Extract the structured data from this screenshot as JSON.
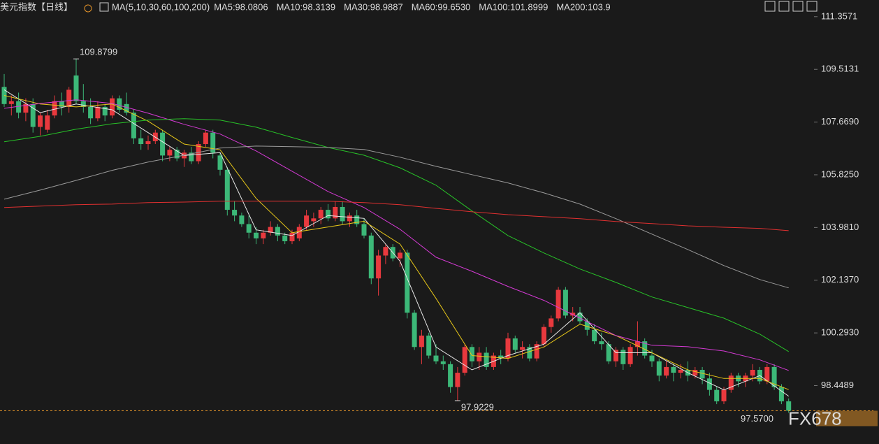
{
  "chart_data": {
    "type": "candlestick",
    "title": "美元指数",
    "period": "【日线】",
    "indicator": "MA(5,10,30,60,100,200)",
    "ylim": [
      97.0,
      111.94
    ],
    "yticks": [
      111.3571,
      109.5131,
      {
        "value": 107.669,
        "label": "107.6690"
      },
      {
        "value": 105.825,
        "label": "105.8250"
      },
      {
        "value": 103.981,
        "label": "103.9810"
      },
      {
        "value": 102.137,
        "label": "102.1370"
      },
      {
        "value": 100.293,
        "label": "100.2930"
      },
      98.4489
    ],
    "up_color": "#e8393e",
    "down_color": "#3cb878",
    "ohlc": [
      [
        108.9,
        109.35,
        108.2,
        108.3
      ],
      [
        108.3,
        108.6,
        107.9,
        108.4
      ],
      [
        108.4,
        108.7,
        107.8,
        108.0
      ],
      [
        108.0,
        108.5,
        107.7,
        108.3
      ],
      [
        108.3,
        108.5,
        107.3,
        107.5
      ],
      [
        107.5,
        108.0,
        107.2,
        107.9
      ],
      [
        107.4,
        108.1,
        107.3,
        107.9
      ],
      [
        107.9,
        108.6,
        107.8,
        108.4
      ],
      [
        108.4,
        108.7,
        107.9,
        108.2
      ],
      [
        108.2,
        108.9,
        108.0,
        108.8
      ],
      [
        109.3,
        109.88,
        108.3,
        108.4
      ],
      [
        108.4,
        109.0,
        108.0,
        108.2
      ],
      [
        108.2,
        108.5,
        107.6,
        107.8
      ],
      [
        107.8,
        108.4,
        107.7,
        108.2
      ],
      [
        108.2,
        108.3,
        107.7,
        107.9
      ],
      [
        107.9,
        108.6,
        107.8,
        108.5
      ],
      [
        108.5,
        108.6,
        108.0,
        108.1
      ],
      [
        108.3,
        108.7,
        107.9,
        108.0
      ],
      [
        108.0,
        108.1,
        106.9,
        107.1
      ],
      [
        107.1,
        107.4,
        106.7,
        106.9
      ],
      [
        106.9,
        107.2,
        106.7,
        107.0
      ],
      [
        107.0,
        107.4,
        106.9,
        107.3
      ],
      [
        107.3,
        107.4,
        106.3,
        106.5
      ],
      [
        106.5,
        106.8,
        106.3,
        106.7
      ],
      [
        106.7,
        106.8,
        106.3,
        106.4
      ],
      [
        106.4,
        106.7,
        106.1,
        106.6
      ],
      [
        106.6,
        106.8,
        106.2,
        106.3
      ],
      [
        106.3,
        107.0,
        106.2,
        106.9
      ],
      [
        106.9,
        107.4,
        106.8,
        107.3
      ],
      [
        107.3,
        107.4,
        106.4,
        106.6
      ],
      [
        106.5,
        106.6,
        105.8,
        106.0
      ],
      [
        106.0,
        106.1,
        104.4,
        104.6
      ],
      [
        104.6,
        104.9,
        104.2,
        104.4
      ],
      [
        104.4,
        104.5,
        104.0,
        104.1
      ],
      [
        104.1,
        104.4,
        103.6,
        103.8
      ],
      [
        103.8,
        104.0,
        103.4,
        103.6
      ],
      [
        103.6,
        103.9,
        103.4,
        103.8
      ],
      [
        103.8,
        104.2,
        103.7,
        104.0
      ],
      [
        104.0,
        104.1,
        103.5,
        103.7
      ],
      [
        103.7,
        103.8,
        103.4,
        103.5
      ],
      [
        103.5,
        103.9,
        103.4,
        103.8
      ],
      [
        103.6,
        104.1,
        103.5,
        104.0
      ],
      [
        104.0,
        104.6,
        103.9,
        104.4
      ],
      [
        104.2,
        104.5,
        104.0,
        104.3
      ],
      [
        104.3,
        104.7,
        104.1,
        104.6
      ],
      [
        104.6,
        104.8,
        104.2,
        104.3
      ],
      [
        104.3,
        104.9,
        104.2,
        104.7
      ],
      [
        104.7,
        104.9,
        104.1,
        104.2
      ],
      [
        104.2,
        104.5,
        104.0,
        104.4
      ],
      [
        104.4,
        104.6,
        104.0,
        104.1
      ],
      [
        104.1,
        104.3,
        103.6,
        103.7
      ],
      [
        103.7,
        103.8,
        102.0,
        102.2
      ],
      [
        102.2,
        103.2,
        101.6,
        103.0
      ],
      [
        103.0,
        103.4,
        102.7,
        103.3
      ],
      [
        103.3,
        103.4,
        102.8,
        102.9
      ],
      [
        102.9,
        103.2,
        102.6,
        103.1
      ],
      [
        103.1,
        103.2,
        100.8,
        101.0
      ],
      [
        101.0,
        101.1,
        99.7,
        99.8
      ],
      [
        99.8,
        100.4,
        99.2,
        100.2
      ],
      [
        100.2,
        100.3,
        99.4,
        99.5
      ],
      [
        99.5,
        99.9,
        99.2,
        99.3
      ],
      [
        99.3,
        99.5,
        99.0,
        99.2
      ],
      [
        99.2,
        99.3,
        98.2,
        98.4
      ],
      [
        98.4,
        99.1,
        97.92,
        98.9
      ],
      [
        98.9,
        99.9,
        98.8,
        99.8
      ],
      [
        99.8,
        99.9,
        99.1,
        99.3
      ],
      [
        99.3,
        99.8,
        99.0,
        99.6
      ],
      [
        99.6,
        99.8,
        99.0,
        99.1
      ],
      [
        99.1,
        99.6,
        99.0,
        99.5
      ],
      [
        99.5,
        99.7,
        99.2,
        99.4
      ],
      [
        99.4,
        100.3,
        99.3,
        100.1
      ],
      [
        100.1,
        100.2,
        99.6,
        99.7
      ],
      [
        99.7,
        100.0,
        99.4,
        99.8
      ],
      [
        99.8,
        99.9,
        99.3,
        99.4
      ],
      [
        99.4,
        100.0,
        99.3,
        99.9
      ],
      [
        99.9,
        100.6,
        99.8,
        100.5
      ],
      [
        100.5,
        100.9,
        100.3,
        100.8
      ],
      [
        100.8,
        101.9,
        100.7,
        101.8
      ],
      [
        101.8,
        101.9,
        100.8,
        100.9
      ],
      [
        100.9,
        101.2,
        100.7,
        101.0
      ],
      [
        101.0,
        101.2,
        100.6,
        100.7
      ],
      [
        100.7,
        100.8,
        100.2,
        100.4
      ],
      [
        100.4,
        100.6,
        99.9,
        100.0
      ],
      [
        100.0,
        100.3,
        99.7,
        99.9
      ],
      [
        99.9,
        100.0,
        99.2,
        99.3
      ],
      [
        99.3,
        99.8,
        99.1,
        99.7
      ],
      [
        99.7,
        99.8,
        99.0,
        99.2
      ],
      [
        99.2,
        99.9,
        99.1,
        99.8
      ],
      [
        99.8,
        100.7,
        99.5,
        100.0
      ],
      [
        100.0,
        100.1,
        99.4,
        99.5
      ],
      [
        99.5,
        99.7,
        99.1,
        99.3
      ],
      [
        99.3,
        99.4,
        98.6,
        98.8
      ],
      [
        98.8,
        99.3,
        98.7,
        99.1
      ],
      [
        99.1,
        99.2,
        98.6,
        98.9
      ],
      [
        98.9,
        99.2,
        98.7,
        99.0
      ],
      [
        99.0,
        99.3,
        98.6,
        98.8
      ],
      [
        98.8,
        99.1,
        98.7,
        99.0
      ],
      [
        99.0,
        99.1,
        98.5,
        98.7
      ],
      [
        98.7,
        98.9,
        98.1,
        98.3
      ],
      [
        98.3,
        98.4,
        97.8,
        97.9
      ],
      [
        97.9,
        98.4,
        97.8,
        98.3
      ],
      [
        98.3,
        98.9,
        98.2,
        98.8
      ],
      [
        98.8,
        98.9,
        98.4,
        98.6
      ],
      [
        98.6,
        98.9,
        98.4,
        98.8
      ],
      [
        98.8,
        99.2,
        98.6,
        99.0
      ],
      [
        99.0,
        99.1,
        98.5,
        98.6
      ],
      [
        98.6,
        99.2,
        98.5,
        99.1
      ],
      [
        99.1,
        99.2,
        98.3,
        98.4
      ],
      [
        98.4,
        98.5,
        97.8,
        97.9
      ],
      [
        97.9,
        98.0,
        97.5,
        97.57
      ]
    ],
    "ma_index": [
      0,
      5,
      10,
      15,
      20,
      25,
      30,
      35,
      40,
      45,
      50,
      55,
      60,
      65,
      70,
      75,
      80,
      85,
      90,
      95,
      100,
      105,
      109
    ],
    "series": [
      {
        "name": "MA5:98.0806",
        "color": "#e8e8e8",
        "values": [
          108.8,
          108.0,
          108.3,
          108.1,
          107.3,
          106.5,
          106.6,
          103.9,
          103.7,
          104.4,
          104.3,
          102.8,
          99.8,
          99.0,
          99.5,
          99.9,
          101.0,
          99.6,
          99.6,
          98.9,
          98.3,
          98.8,
          98.08
        ]
      },
      {
        "name": "MA10:98.3139",
        "color": "#e6c619",
        "values": [
          108.6,
          108.3,
          108.2,
          108.3,
          107.7,
          106.9,
          106.7,
          105.0,
          103.8,
          104.0,
          104.2,
          103.4,
          101.5,
          99.5,
          99.4,
          99.8,
          100.6,
          100.2,
          99.6,
          99.0,
          98.7,
          98.7,
          98.31
        ]
      },
      {
        "name": "MA30:98.9887",
        "color": "#d43ad4",
        "values": [
          108.15,
          108.32,
          108.45,
          108.32,
          107.98,
          107.59,
          107.25,
          106.66,
          105.95,
          105.24,
          104.68,
          103.92,
          102.94,
          102.45,
          101.92,
          101.43,
          100.81,
          100.2,
          99.86,
          99.81,
          99.66,
          99.35,
          98.98
        ]
      },
      {
        "name": "MA60:99.6530",
        "color": "#28c228",
        "values": [
          106.98,
          107.17,
          107.42,
          107.61,
          107.74,
          107.79,
          107.74,
          107.49,
          107.13,
          106.78,
          106.51,
          106.07,
          105.46,
          104.56,
          103.7,
          103.09,
          102.53,
          102.06,
          101.55,
          101.18,
          100.81,
          100.25,
          99.64
        ]
      },
      {
        "name": "MA100:101.8999",
        "color": "#9a9a9a",
        "values": [
          104.97,
          105.29,
          105.63,
          105.98,
          106.27,
          106.51,
          106.76,
          106.83,
          106.81,
          106.78,
          106.71,
          106.44,
          106.12,
          105.83,
          105.54,
          105.19,
          104.8,
          104.29,
          103.75,
          103.21,
          102.65,
          102.16,
          101.87
        ]
      },
      {
        "name": "MA200:103.9",
        "color": "#e03030",
        "values": [
          104.68,
          104.73,
          104.78,
          104.8,
          104.85,
          104.87,
          104.9,
          104.9,
          104.9,
          104.9,
          104.85,
          104.78,
          104.65,
          104.53,
          104.43,
          104.36,
          104.29,
          104.19,
          104.12,
          104.04,
          103.99,
          103.95,
          103.87
        ]
      }
    ],
    "annotations": [
      109.8799,
      97.9229
    ],
    "last_price": {
      "value": 97.57,
      "label": "97.5700"
    },
    "watermark": "FX678"
  }
}
